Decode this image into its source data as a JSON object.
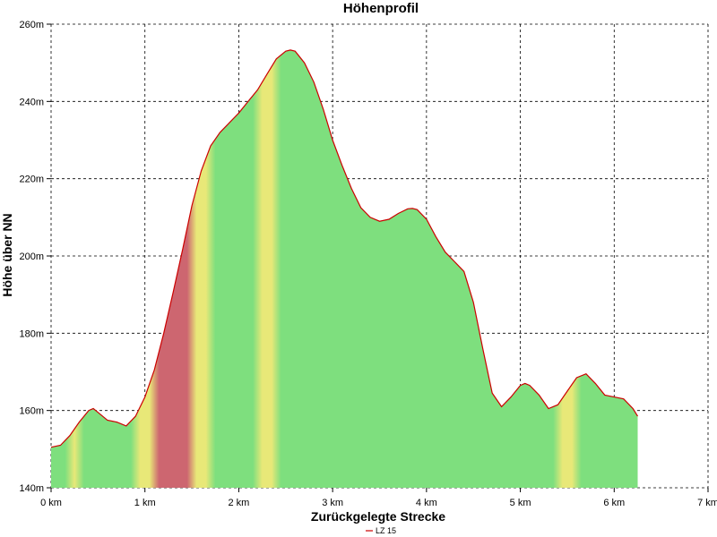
{
  "chart_data": {
    "type": "area",
    "title": "Höhenprofil",
    "xlabel": "Zurückgelegte Strecke",
    "ylabel": "Höhe über NN",
    "xlim": [
      0,
      7
    ],
    "ylim": [
      140,
      260
    ],
    "grid": true,
    "legend_position": "bottom-center",
    "x_ticks": [
      {
        "value": 0,
        "label": "0 km"
      },
      {
        "value": 1,
        "label": "1 km"
      },
      {
        "value": 2,
        "label": "2 km"
      },
      {
        "value": 3,
        "label": "3 km"
      },
      {
        "value": 4,
        "label": "4 km"
      },
      {
        "value": 5,
        "label": "5 km"
      },
      {
        "value": 6,
        "label": "6 km"
      },
      {
        "value": 7,
        "label": "7 km"
      }
    ],
    "y_ticks": [
      {
        "value": 140,
        "label": "140m"
      },
      {
        "value": 160,
        "label": "160m"
      },
      {
        "value": 180,
        "label": "180m"
      },
      {
        "value": 200,
        "label": "200m"
      },
      {
        "value": 220,
        "label": "220m"
      },
      {
        "value": 240,
        "label": "240m"
      },
      {
        "value": 260,
        "label": "260m"
      }
    ],
    "series": [
      {
        "name": "LZ 15",
        "color": "#cc0000",
        "x": [
          0,
          0.1,
          0.2,
          0.3,
          0.4,
          0.45,
          0.5,
          0.6,
          0.7,
          0.8,
          0.9,
          1.0,
          1.1,
          1.2,
          1.3,
          1.4,
          1.5,
          1.6,
          1.7,
          1.8,
          1.9,
          2.0,
          2.1,
          2.2,
          2.3,
          2.4,
          2.5,
          2.55,
          2.6,
          2.7,
          2.8,
          2.9,
          3.0,
          3.1,
          3.2,
          3.3,
          3.4,
          3.5,
          3.6,
          3.7,
          3.8,
          3.85,
          3.9,
          4.0,
          4.1,
          4.2,
          4.3,
          4.4,
          4.5,
          4.6,
          4.7,
          4.8,
          4.9,
          5.0,
          5.05,
          5.1,
          5.2,
          5.3,
          5.4,
          5.5,
          5.6,
          5.7,
          5.8,
          5.9,
          6.0,
          6.1,
          6.2,
          6.25
        ],
        "y": [
          150.5,
          151,
          153.5,
          157,
          160,
          160.5,
          159.5,
          157.5,
          157,
          156,
          158.5,
          163.5,
          170.5,
          180,
          190.5,
          201.5,
          213,
          222,
          228.5,
          232,
          234.5,
          237,
          240,
          243,
          247,
          251,
          253,
          253.3,
          253,
          250,
          245,
          238,
          230,
          223.5,
          217.5,
          212.5,
          210,
          209,
          209.5,
          211,
          212.2,
          212.3,
          212,
          209.5,
          205,
          201,
          198.5,
          196,
          188,
          176,
          164.5,
          161,
          163.5,
          166.5,
          167,
          166.5,
          164,
          160.5,
          161.5,
          165,
          168.5,
          169.5,
          167,
          164,
          163.5,
          163,
          160.5,
          158.5
        ]
      }
    ],
    "gradient_colors": {
      "steep": "#cd6670",
      "moderate": "#e8e878",
      "flat": "#7edf7e"
    }
  }
}
